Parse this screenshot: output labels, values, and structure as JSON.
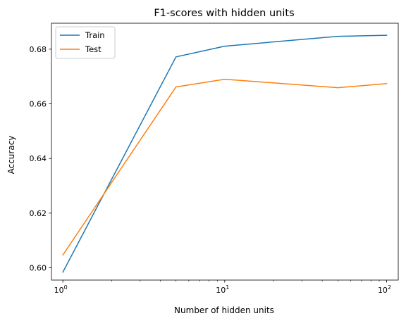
{
  "chart_data": {
    "type": "line",
    "title": "F1-scores with hidden units",
    "xlabel": "Number of hidden units",
    "ylabel": "Accuracy",
    "xscale": "log",
    "xlim": [
      0.85,
      118
    ],
    "ylim": [
      0.5955,
      0.6895
    ],
    "x_ticks": [
      {
        "value": 1,
        "base": "10",
        "exp": "0"
      },
      {
        "value": 10,
        "base": "10",
        "exp": "1"
      },
      {
        "value": 100,
        "base": "10",
        "exp": "2"
      }
    ],
    "y_ticks": [
      {
        "value": 0.6,
        "label": "0.60"
      },
      {
        "value": 0.62,
        "label": "0.62"
      },
      {
        "value": 0.64,
        "label": "0.64"
      },
      {
        "value": 0.66,
        "label": "0.66"
      },
      {
        "value": 0.68,
        "label": "0.68"
      }
    ],
    "legend_position": "top-left",
    "grid": false,
    "series": [
      {
        "name": "Train",
        "color": "#1f77b4",
        "x": [
          1,
          5,
          10,
          50,
          100
        ],
        "y": [
          0.5984,
          0.6772,
          0.6811,
          0.6847,
          0.6851
        ]
      },
      {
        "name": "Test",
        "color": "#ff7f0e",
        "x": [
          1,
          5,
          10,
          50,
          100
        ],
        "y": [
          0.6047,
          0.6662,
          0.669,
          0.6659,
          0.6674
        ]
      }
    ]
  }
}
